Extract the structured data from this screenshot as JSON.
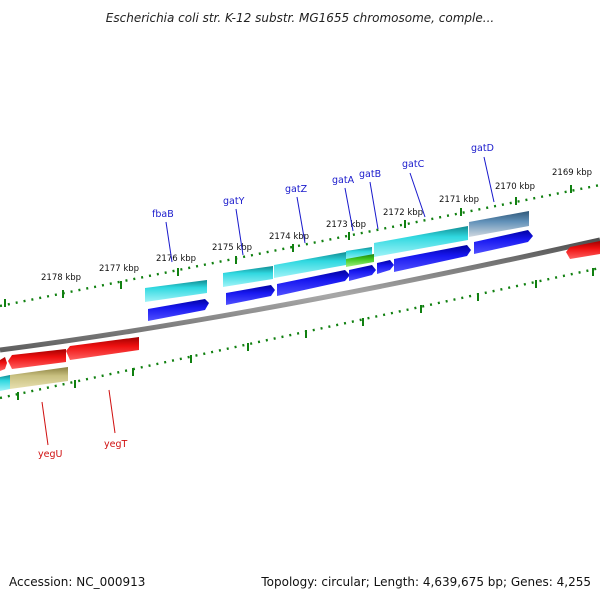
{
  "title": "Escherichia coli str. K-12 substr. MG1655 chromosome, comple...",
  "footer": {
    "accession": "Accession: NC_000913",
    "summary": "Topology: circular; Length: 4,639,675 bp; Genes: 4,255"
  },
  "scale_labels": [
    "2178 kbp",
    "2177 kbp",
    "2176 kbp",
    "2175 kbp",
    "2174 kbp",
    "2173 kbp",
    "2172 kbp",
    "2171 kbp",
    "2170 kbp",
    "2169 kbp"
  ],
  "forward_genes": [
    "fbaB",
    "gatY",
    "gatZ",
    "gatA",
    "gatB",
    "gatC",
    "gatD"
  ],
  "reverse_genes": [
    "yegU",
    "yegT"
  ],
  "colors": {
    "cds_blue": "#1010e8",
    "cds_red": "#e01010",
    "gene_cyan": "#20c0c8",
    "gene_khaki": "#c8c080",
    "gene_green": "#40c020",
    "gene_steel": "#5080a8",
    "backbone": "#808080",
    "tick_green": "#108010"
  }
}
